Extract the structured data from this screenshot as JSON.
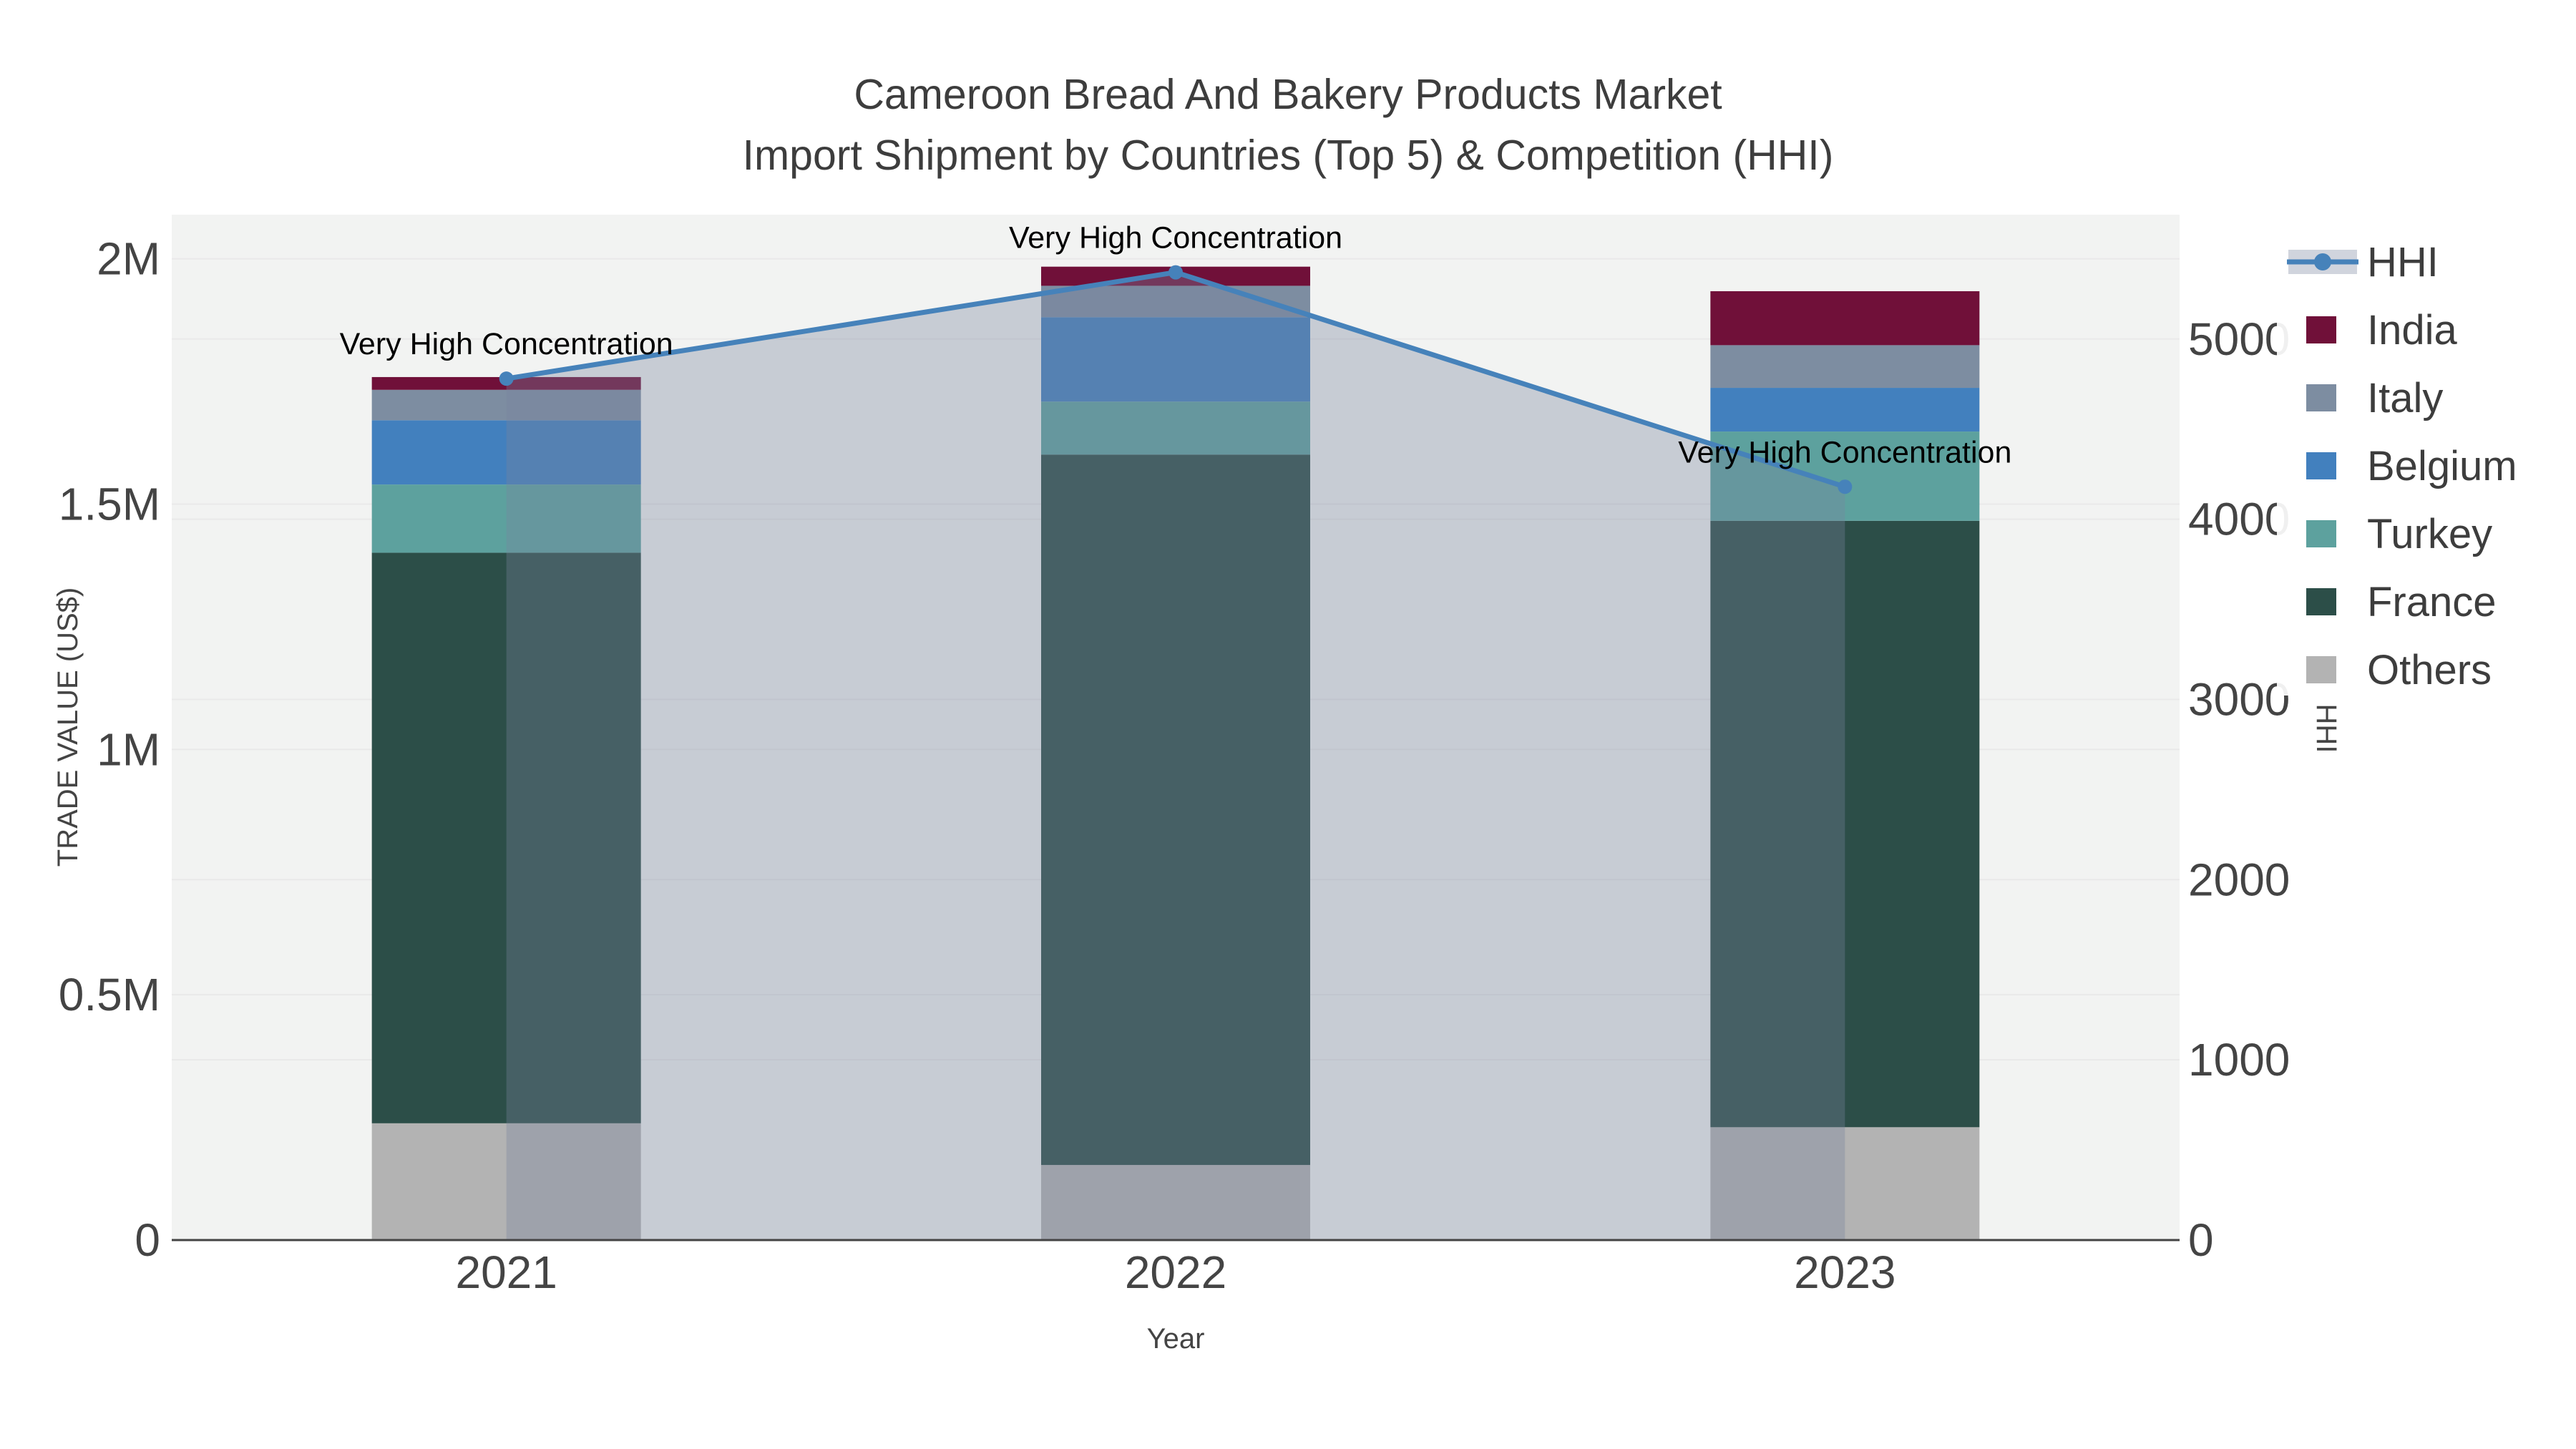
{
  "chart_data": {
    "type": "bar",
    "title": "Cameroon Bread And Bakery Products Market",
    "subtitle": "Import Shipment by Countries (Top 5) & Competition (HHI)",
    "xlabel": "Year",
    "categories": [
      "2021",
      "2022",
      "2023"
    ],
    "stack_order_bottom_to_top": [
      "Others",
      "France",
      "Turkey",
      "Belgium",
      "Italy",
      "India"
    ],
    "bar_series": [
      {
        "name": "Others",
        "color": "#b3b3b3",
        "values": [
          238000,
          153000,
          230000
        ]
      },
      {
        "name": "France",
        "color": "#2c4e48",
        "values": [
          1163000,
          1448000,
          1236000
        ]
      },
      {
        "name": "Turkey",
        "color": "#5da19e",
        "values": [
          139000,
          108000,
          182000
        ]
      },
      {
        "name": "Belgium",
        "color": "#4280be",
        "values": [
          131000,
          172000,
          89000
        ]
      },
      {
        "name": "Italy",
        "color": "#7d8da1",
        "values": [
          62000,
          64000,
          87000
        ]
      },
      {
        "name": "India",
        "color": "#701039",
        "values": [
          26000,
          39000,
          110000
        ]
      }
    ],
    "line_series": {
      "name": "HHI",
      "color": "#4682ba",
      "marker": "circle",
      "area_fill_color": "rgba(119,133,158,0.35)",
      "values": [
        4780,
        5370,
        4180
      ]
    },
    "annotations": [
      {
        "year": "2021",
        "text": "Very High Concentration"
      },
      {
        "year": "2022",
        "text": "Very High Concentration"
      },
      {
        "year": "2023",
        "text": "Very High Concentration"
      }
    ],
    "legend": {
      "position": "right",
      "entries": [
        "HHI",
        "India",
        "Italy",
        "Belgium",
        "Turkey",
        "France",
        "Others"
      ]
    },
    "left_axis": {
      "title": "TRADE VALUE (US$)",
      "range_max": 2090000,
      "ticks": [
        {
          "label": "0",
          "value": 0
        },
        {
          "label": "0.5M",
          "value": 500000
        },
        {
          "label": "1M",
          "value": 1000000
        },
        {
          "label": "1.5M",
          "value": 1500000
        },
        {
          "label": "2M",
          "value": 2000000
        }
      ]
    },
    "right_axis": {
      "title": "HHI",
      "range_max": 5690,
      "ticks": [
        {
          "label": "0",
          "value": 0
        },
        {
          "label": "1000",
          "value": 1000
        },
        {
          "label": "2000",
          "value": 2000
        },
        {
          "label": "3000",
          "value": 3000
        },
        {
          "label": "4000",
          "value": 4000
        },
        {
          "label": "5000",
          "value": 5000
        }
      ]
    },
    "colors": {
      "plot_background": "#f2f3f2",
      "grid": "#e9e9e9",
      "axis_line": "#444444",
      "tick_text": "#444444",
      "title_text": "#3d3d3d",
      "annotation_text": "#000000"
    }
  }
}
